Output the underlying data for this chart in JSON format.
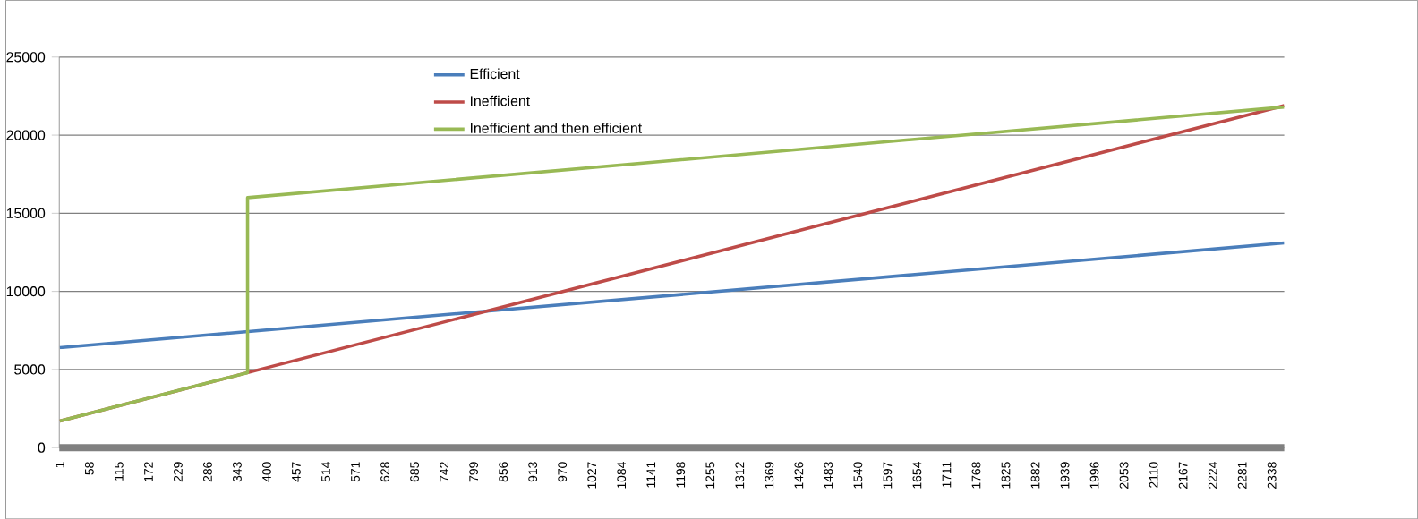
{
  "chart_data": {
    "type": "line",
    "series": [
      {
        "name": "Efficient",
        "color": "#4a7ebb",
        "x": [
          1,
          2362
        ],
        "values": [
          6400,
          13100
        ]
      },
      {
        "name": "Inefficient",
        "color": "#be4b48",
        "x": [
          1,
          2362
        ],
        "values": [
          1700,
          21900
        ]
      },
      {
        "name": "Inefficient and then efficient",
        "color": "#98b954",
        "x": [
          1,
          363,
          363,
          2362
        ],
        "values": [
          1700,
          4800,
          16000,
          21800
        ]
      }
    ],
    "xlim": [
      0,
      2362
    ],
    "xticks": [
      1,
      58,
      115,
      172,
      229,
      286,
      343,
      400,
      457,
      514,
      571,
      628,
      685,
      742,
      799,
      856,
      913,
      970,
      1027,
      1084,
      1141,
      1198,
      1255,
      1312,
      1369,
      1426,
      1483,
      1540,
      1597,
      1654,
      1711,
      1768,
      1825,
      1882,
      1939,
      1996,
      2053,
      2110,
      2167,
      2224,
      2281,
      2338
    ],
    "ylim": [
      0,
      25000
    ],
    "yticks": [
      0,
      5000,
      10000,
      15000,
      20000,
      25000
    ],
    "grid": "y",
    "legend": "top left",
    "marker": "none",
    "line_style": "solid"
  }
}
